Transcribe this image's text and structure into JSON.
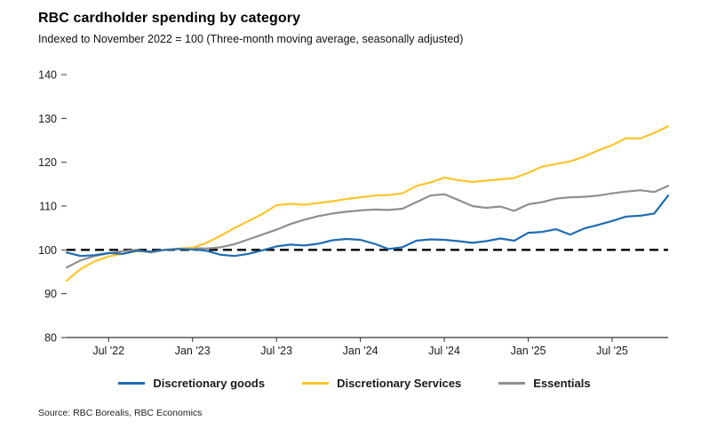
{
  "header": {
    "title": "RBC cardholder spending by category",
    "subtitle": "Indexed to November 2022 = 100 (Three-month moving average, seasonally adjusted)"
  },
  "source": "Source: RBC Borealis, RBC Economics",
  "chart_data": {
    "type": "line",
    "title": "RBC cardholder spending by category",
    "subtitle": "Indexed to November 2022 = 100 (Three-month moving average, seasonally adjusted)",
    "grid": false,
    "legend_position": "bottom",
    "ylim": [
      80,
      140
    ],
    "y_ticks": [
      80,
      90,
      100,
      110,
      120,
      130,
      140
    ],
    "x_months": [
      "2022-04",
      "2022-05",
      "2022-06",
      "2022-07",
      "2022-08",
      "2022-09",
      "2022-10",
      "2022-11",
      "2022-12",
      "2023-01",
      "2023-02",
      "2023-03",
      "2023-04",
      "2023-05",
      "2023-06",
      "2023-07",
      "2023-08",
      "2023-09",
      "2023-10",
      "2023-11",
      "2023-12",
      "2024-01",
      "2024-02",
      "2024-03",
      "2024-04",
      "2024-05",
      "2024-06",
      "2024-07",
      "2024-08",
      "2024-09",
      "2024-10",
      "2024-11",
      "2024-12",
      "2025-01",
      "2025-02",
      "2025-03",
      "2025-04",
      "2025-05",
      "2025-06",
      "2025-07",
      "2025-08",
      "2025-09",
      "2025-10",
      "2025-11"
    ],
    "x_tick_labels": [
      "Jul '22",
      "Jan '23",
      "Jul '23",
      "Jan '24",
      "Jul '24",
      "Jan '25",
      "Jul '25"
    ],
    "x_tick_indices": [
      3,
      9,
      15,
      21,
      27,
      33,
      39
    ],
    "reference_line": {
      "value": 100,
      "style": "dashed",
      "color": "#000000"
    },
    "series": [
      {
        "name": "Discretionary goods",
        "color": "#1f6cb4",
        "values": [
          99.4,
          98.6,
          98.8,
          99.3,
          99.1,
          99.8,
          99.6,
          100.0,
          100.2,
          100.1,
          99.8,
          98.9,
          98.6,
          99.1,
          99.9,
          100.8,
          101.2,
          101.0,
          101.4,
          102.2,
          102.5,
          102.3,
          101.4,
          100.2,
          100.6,
          102.1,
          102.4,
          102.3,
          102.0,
          101.6,
          102.0,
          102.6,
          102.1,
          103.9,
          104.1,
          104.7,
          103.5,
          104.9,
          105.7,
          106.6,
          107.6,
          107.8,
          108.3,
          112.4
        ]
      },
      {
        "name": "Discretionary Services",
        "color": "#fdc42c",
        "values": [
          93.0,
          95.6,
          97.4,
          98.5,
          99.1,
          99.7,
          99.6,
          100.0,
          100.3,
          100.5,
          101.6,
          103.2,
          105.0,
          106.6,
          108.2,
          110.2,
          110.5,
          110.3,
          110.7,
          111.1,
          111.6,
          112.0,
          112.4,
          112.5,
          112.9,
          114.6,
          115.4,
          116.5,
          115.9,
          115.5,
          115.8,
          116.1,
          116.4,
          117.6,
          119.0,
          119.6,
          120.2,
          121.3,
          122.7,
          123.9,
          125.5,
          125.4,
          126.7,
          128.2
        ]
      },
      {
        "name": "Essentials",
        "color": "#8f8f8f",
        "values": [
          96.0,
          97.6,
          98.6,
          99.2,
          99.7,
          100.0,
          99.4,
          100.0,
          100.2,
          100.4,
          100.3,
          100.6,
          101.3,
          102.4,
          103.5,
          104.6,
          105.9,
          106.9,
          107.7,
          108.3,
          108.7,
          109.0,
          109.2,
          109.1,
          109.4,
          110.9,
          112.4,
          112.7,
          111.4,
          110.0,
          109.6,
          109.9,
          108.9,
          110.4,
          110.9,
          111.7,
          112.0,
          112.1,
          112.4,
          112.9,
          113.3,
          113.6,
          113.2,
          114.6
        ]
      }
    ]
  }
}
